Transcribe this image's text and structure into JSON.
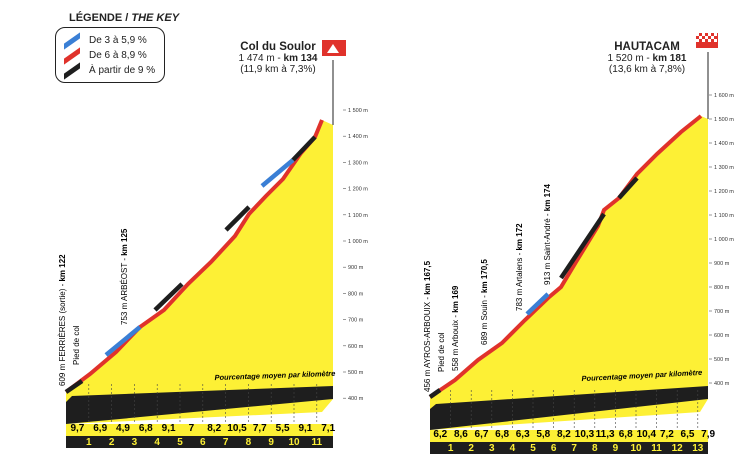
{
  "legend": {
    "title_fr": "LÉGENDE",
    "title_en": "THE KEY",
    "items": [
      {
        "label": "De 3 à 5,9 %",
        "color": "#3a7fd5"
      },
      {
        "label": "De 6 à 8,9 %",
        "color": "#e0322b"
      },
      {
        "label": "À partir de 9 %",
        "color": "#1e1e1e"
      }
    ]
  },
  "profiles": [
    {
      "name": "Col du Soulor",
      "summit_line": "1 474 m - ",
      "summit_km": "km 134",
      "stats": "(11,9 km à 7,3%)",
      "flag_icon": "mountain-summit-flag-icon",
      "alt_ticks": [
        "1 500 m",
        "1 400 m",
        "1 300 m",
        "1 200 m",
        "1 100 m",
        "1 000 m",
        "900 m",
        "800 m",
        "700 m",
        "600 m",
        "500 m",
        "400 m"
      ],
      "km_labels": [
        "1",
        "2",
        "3",
        "4",
        "5",
        "6",
        "7",
        "8",
        "9",
        "10",
        "11"
      ],
      "gradients": [
        "9,7",
        "6,9",
        "4,9",
        "6,8",
        "9,1",
        "7",
        "8,2",
        "10,5",
        "7,7",
        "5,5",
        "9,1",
        "7,1"
      ],
      "band_label": "Pourcentage moyen par kilomètre",
      "waypoints": [
        {
          "text": "609 m FERRIÈRES (sortie) - ",
          "km": "km 122",
          "sub": "Pied de col"
        },
        {
          "text": "753 m ARBÉOST - ",
          "km": "km 125",
          "sub": ""
        }
      ]
    },
    {
      "name": "HAUTACAM",
      "summit_line": "1 520 m - ",
      "summit_km": "km 181",
      "stats": "(13,6 km à 7,8%)",
      "flag_icon": "finish-flag-icon",
      "alt_ticks": [
        "1 600 m",
        "1 500 m",
        "1 400 m",
        "1 300 m",
        "1 200 m",
        "1 100 m",
        "1 000 m",
        "900 m",
        "800 m",
        "700 m",
        "600 m",
        "500 m",
        "400 m"
      ],
      "km_labels": [
        "1",
        "2",
        "3",
        "4",
        "5",
        "6",
        "7",
        "8",
        "9",
        "10",
        "11",
        "12",
        "13"
      ],
      "gradients": [
        "6,2",
        "8,6",
        "6,7",
        "6,8",
        "6,3",
        "5,8",
        "8,2",
        "10,3",
        "11,3",
        "6,8",
        "10,4",
        "7,2",
        "6,5",
        "7,9"
      ],
      "band_label": "Pourcentage moyen par kilomètre",
      "waypoints": [
        {
          "text": "456 m AYROS-ARBOUIX - ",
          "km": "km 167,5",
          "sub": "Pied de col"
        },
        {
          "text": "558 m Arbouix - ",
          "km": "km 169",
          "sub": ""
        },
        {
          "text": "689 m Souin - ",
          "km": "km 170,5",
          "sub": ""
        },
        {
          "text": "783 m Artalens - ",
          "km": "km 172",
          "sub": ""
        },
        {
          "text": "913 m Saint-André - ",
          "km": "km 174",
          "sub": ""
        }
      ]
    }
  ]
}
